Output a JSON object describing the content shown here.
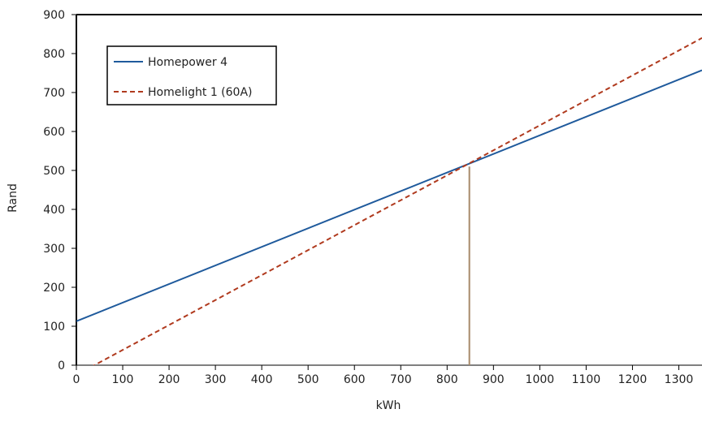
{
  "chart_data": {
    "type": "line",
    "title": "",
    "xlabel": "kWh",
    "ylabel": "Rand",
    "xlim": [
      0,
      1350
    ],
    "ylim": [
      0,
      900
    ],
    "xticks": [
      0,
      100,
      200,
      300,
      400,
      500,
      600,
      700,
      800,
      900,
      1000,
      1100,
      1200,
      1300
    ],
    "yticks": [
      0,
      100,
      200,
      300,
      400,
      500,
      600,
      700,
      800,
      900
    ],
    "grid": false,
    "legend_position": "top-left",
    "series": [
      {
        "name": "Homepower 4",
        "color": "#1f5a9c",
        "style": "solid",
        "x": [
          0,
          1350
        ],
        "y": [
          113,
          757
        ]
      },
      {
        "name": "Homelight 1 (60A)",
        "color": "#b03a1e",
        "style": "dashed",
        "x": [
          0,
          1350
        ],
        "y": [
          -25,
          840
        ]
      }
    ],
    "annotations": [
      {
        "type": "vertical-line",
        "x": 848,
        "y_from": 0,
        "y_to": 510,
        "color": "#a88a6a"
      }
    ]
  }
}
